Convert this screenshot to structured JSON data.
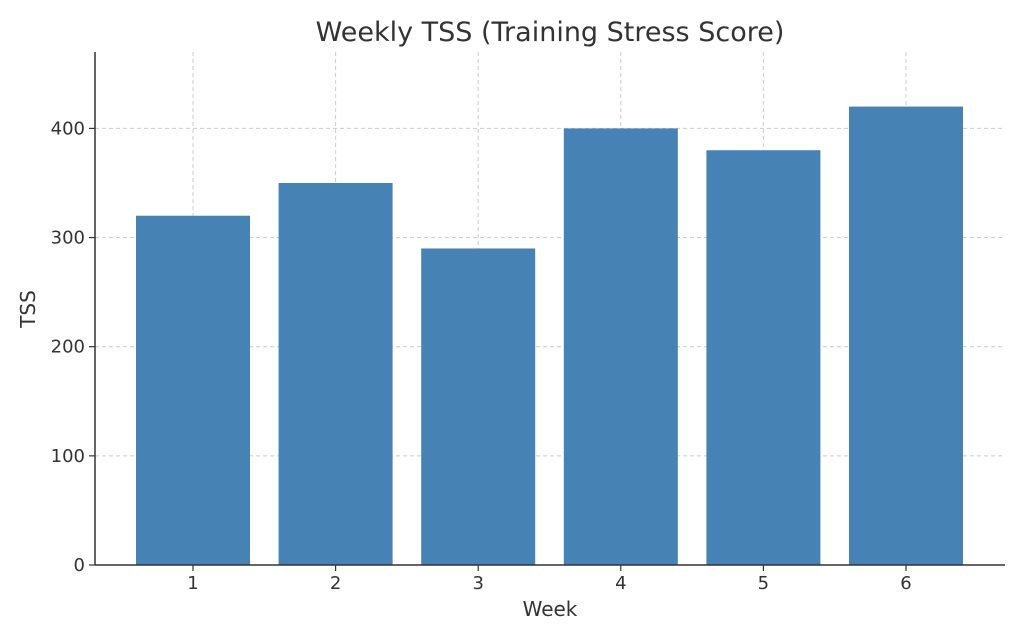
{
  "chart_data": {
    "type": "bar",
    "title": "Weekly TSS (Training Stress Score)",
    "xlabel": "Week",
    "ylabel": "TSS",
    "categories": [
      "1",
      "2",
      "3",
      "4",
      "5",
      "6"
    ],
    "values": [
      320,
      350,
      290,
      400,
      380,
      420
    ],
    "ylim": [
      0,
      470
    ],
    "yticks": [
      0,
      100,
      200,
      300,
      400
    ],
    "grid": true,
    "bar_color": "#4682b4"
  }
}
